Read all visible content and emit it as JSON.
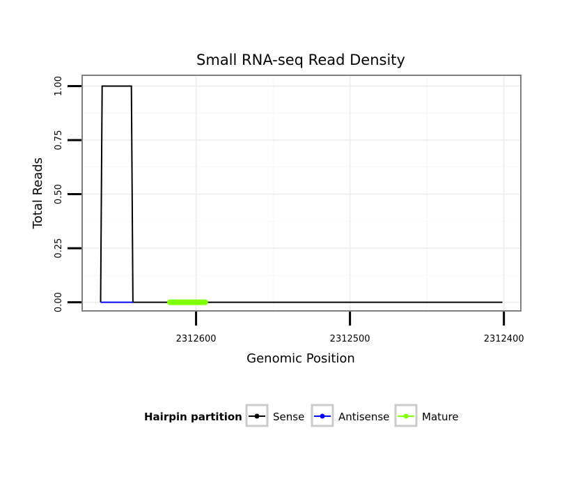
{
  "chart_data": {
    "type": "line",
    "title": "Small RNA-seq Read Density",
    "xlabel": "Genomic Position",
    "ylabel": "Total Reads",
    "x_reversed": true,
    "xlim": [
      2312674,
      2312389
    ],
    "ylim": [
      -0.04,
      1.05
    ],
    "x_ticks": [
      2312600,
      2312500,
      2312400
    ],
    "x_tick_labels": [
      "2312600",
      "2312500",
      "2312400"
    ],
    "y_ticks": [
      0,
      0.25,
      0.5,
      0.75,
      1
    ],
    "y_tick_labels": [
      "0.00",
      "0.25",
      "0.50",
      "0.75",
      "1.00"
    ],
    "grid": true,
    "legend": {
      "title": "Hairpin partition",
      "position": "bottom",
      "entries": [
        {
          "label": "Sense",
          "color": "#000000"
        },
        {
          "label": "Antisense",
          "color": "#0000ff"
        },
        {
          "label": "Mature",
          "color": "#7fff00"
        }
      ]
    },
    "series": [
      {
        "name": "Sense",
        "color": "#000000",
        "x": [
          2312662,
          2312661,
          2312642,
          2312641,
          2312401
        ],
        "y": [
          0,
          1,
          1,
          0,
          0
        ]
      },
      {
        "name": "Antisense",
        "color": "#0000ff",
        "x": [
          2312662,
          2312641
        ],
        "y": [
          0,
          0
        ]
      },
      {
        "name": "Mature",
        "color": "#7fff00",
        "x": [
          2312617,
          2312594
        ],
        "y": [
          0,
          0
        ]
      }
    ]
  }
}
